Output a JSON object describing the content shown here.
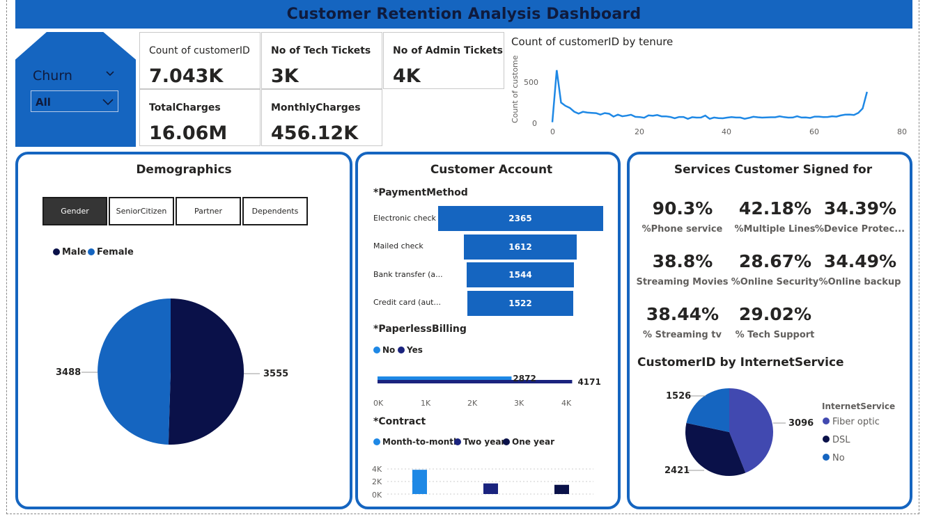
{
  "header": {
    "title": "Customer Retention Analysis Dashboard"
  },
  "colors": {
    "accent": "#1565c0",
    "dark_navy": "#0a1149",
    "light_blue": "#1e88e5",
    "purple": "#4149b0"
  },
  "slicer": {
    "label": "Churn",
    "value": "All"
  },
  "kpis": {
    "count_customer": {
      "label": "Count of customerID",
      "value": "7.043K"
    },
    "tech_tickets": {
      "label": "No of Tech Tickets",
      "value": "3K"
    },
    "admin_tickets": {
      "label": "No of Admin Tickets",
      "value": "4K"
    },
    "total_charges": {
      "label": "TotalCharges",
      "value": "16.06M"
    },
    "monthly_charges": {
      "label": "MonthlyCharges",
      "value": "456.12K"
    }
  },
  "tenure_chart": {
    "title": "Count of customerID by tenure",
    "ylabel": "Count of custome...",
    "y_ticks": [
      "500",
      "0"
    ],
    "x_ticks": [
      "0",
      "20",
      "40",
      "60",
      "80"
    ]
  },
  "demographics": {
    "title": "Demographics",
    "tabs": [
      "Gender",
      "SeniorCitizen",
      "Partner",
      "Dependents"
    ],
    "active_tab": "Gender",
    "legend": [
      "Male",
      "Female"
    ],
    "labels": {
      "female": "3488",
      "male": "3555"
    }
  },
  "account": {
    "title": "Customer Account",
    "payment_title": "*PaymentMethod",
    "paperless_title": "*PaperlessBilling",
    "paperless_legend": [
      "No",
      "Yes"
    ],
    "paperless_no": "2872",
    "paperless_yes": "4171",
    "paperless_ticks": [
      "0K",
      "1K",
      "2K",
      "3K",
      "4K"
    ],
    "contract_title": "*Contract",
    "contract_legend": [
      "Month-to-month",
      "Two year",
      "One year"
    ],
    "contract_ticks": [
      "4K",
      "2K",
      "0K"
    ]
  },
  "services": {
    "title": "Services Customer Signed for",
    "items": [
      {
        "value": "90.3%",
        "label": "%Phone service"
      },
      {
        "value": "42.18%",
        "label": "%Multiple Lines"
      },
      {
        "value": "34.39%",
        "label": "%Device Protec..."
      },
      {
        "value": "38.8%",
        "label": "Streaming Movies"
      },
      {
        "value": "28.67%",
        "label": "%Online Security"
      },
      {
        "value": "34.49%",
        "label": "%Online backup"
      },
      {
        "value": "38.44%",
        "label": "% Streaming tv"
      },
      {
        "value": "29.02%",
        "label": "% Tech Support"
      }
    ],
    "internet_title": "CustomerID by InternetService",
    "internet_legend_title": "InternetService",
    "internet_legend": [
      "Fiber optic",
      "DSL",
      "No"
    ],
    "internet_labels": {
      "fiber": "3096",
      "dsl": "2421",
      "no": "1526"
    }
  },
  "chart_data": [
    {
      "type": "line",
      "title": "Count of customerID by tenure",
      "ylabel": "Count of custome...",
      "xlim": [
        0,
        80
      ],
      "ylim": [
        0,
        650
      ],
      "x": [
        0,
        1,
        2,
        3,
        4,
        5,
        6,
        7,
        8,
        9,
        10,
        11,
        12,
        13,
        14,
        15,
        16,
        17,
        18,
        19,
        20,
        21,
        22,
        23,
        24,
        25,
        26,
        27,
        28,
        29,
        30,
        31,
        32,
        33,
        34,
        35,
        36,
        37,
        38,
        39,
        40,
        41,
        42,
        43,
        44,
        45,
        46,
        47,
        48,
        49,
        50,
        51,
        52,
        53,
        54,
        55,
        56,
        57,
        58,
        59,
        60,
        61,
        62,
        63,
        64,
        65,
        66,
        67,
        68,
        69,
        70,
        71,
        72
      ],
      "y": [
        11,
        613,
        238,
        200,
        176,
        133,
        110,
        131,
        123,
        119,
        116,
        99,
        117,
        109,
        76,
        99,
        80,
        87,
        97,
        73,
        71,
        63,
        90,
        85,
        94,
        79,
        79,
        72,
        57,
        72,
        72,
        50,
        69,
        64,
        65,
        88,
        50,
        65,
        59,
        56,
        64,
        70,
        65,
        65,
        51,
        61,
        74,
        68,
        64,
        66,
        68,
        68,
        80,
        70,
        64,
        65,
        80,
        65,
        67,
        60,
        76,
        76,
        70,
        72,
        80,
        76,
        89,
        98,
        100,
        95,
        119,
        170,
        362
      ]
    },
    {
      "type": "pie",
      "title": "Demographics",
      "categories": [
        "Male",
        "Female"
      ],
      "values": [
        3555,
        3488
      ]
    },
    {
      "type": "bar",
      "title": "*PaymentMethod",
      "categories": [
        "Electronic check",
        "Mailed check",
        "Bank transfer (a...",
        "Credit card (aut..."
      ],
      "values": [
        2365,
        1612,
        1544,
        1522
      ]
    },
    {
      "type": "bar",
      "title": "*PaperlessBilling",
      "categories": [
        "No",
        "Yes"
      ],
      "values": [
        2872,
        4171
      ],
      "xlim": [
        0,
        4500
      ]
    },
    {
      "type": "bar",
      "title": "*Contract",
      "categories": [
        "Month-to-month",
        "Two year",
        "One year"
      ],
      "values": [
        3875,
        1695,
        1473
      ],
      "ylim": [
        0,
        4500
      ]
    },
    {
      "type": "pie",
      "title": "CustomerID by InternetService",
      "categories": [
        "Fiber optic",
        "DSL",
        "No"
      ],
      "values": [
        3096,
        2421,
        1526
      ]
    }
  ]
}
